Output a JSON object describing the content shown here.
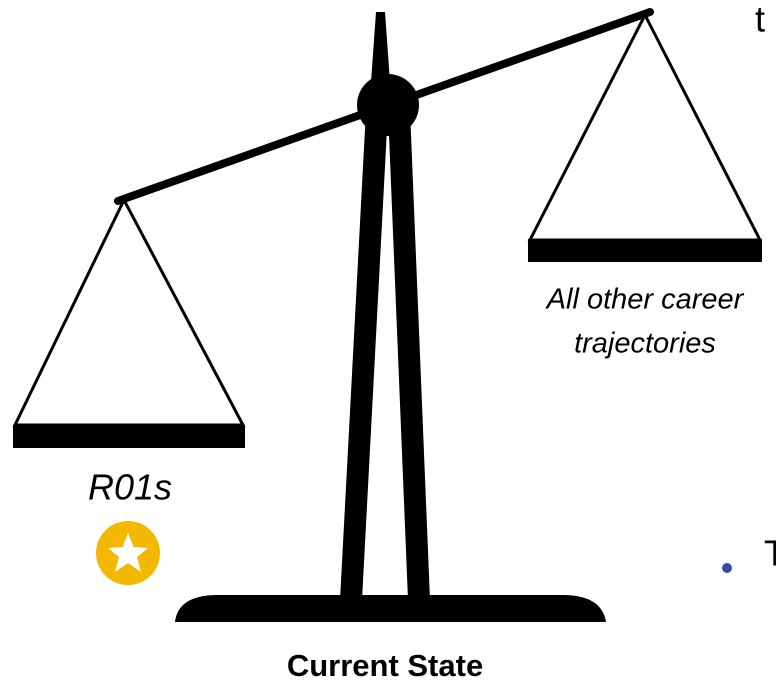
{
  "left_pan": {
    "label": "R01s"
  },
  "right_pan": {
    "label_lines": [
      "All other career",
      "trajectories"
    ]
  },
  "caption": "Current State",
  "fragments": {
    "top_right": "t",
    "bullet_text": "T"
  }
}
